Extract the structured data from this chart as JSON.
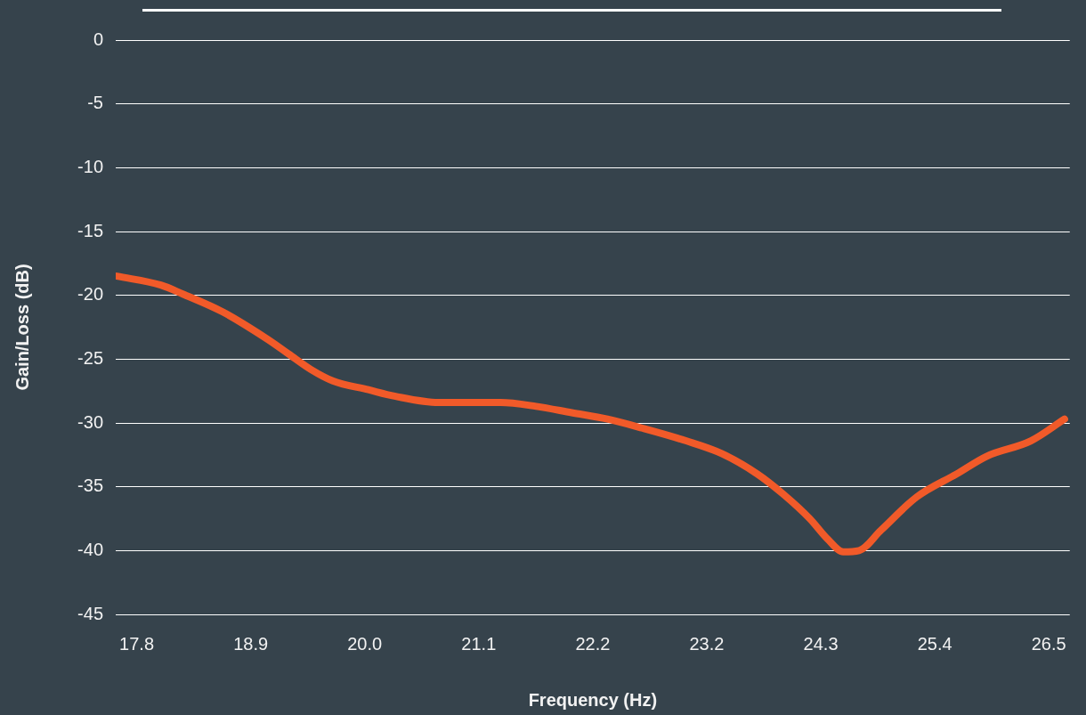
{
  "chart_data": {
    "type": "line",
    "xlabel": "Frequency (Hz)",
    "ylabel": "Gain/Loss (dB)",
    "x": [
      17.61,
      18.03,
      18.24,
      18.62,
      19.04,
      19.25,
      19.46,
      19.67,
      20.01,
      20.26,
      20.68,
      21.27,
      21.61,
      21.95,
      22.29,
      22.62,
      23.04,
      23.38,
      23.72,
      23.97,
      24.22,
      24.39,
      24.54,
      24.69,
      24.9,
      25.24,
      25.62,
      25.91,
      26.33,
      26.65
    ],
    "series": [
      {
        "color": "#f15a29",
        "values": [
          -18.5,
          -19.2,
          -19.9,
          -21.3,
          -23.4,
          -24.6,
          -25.8,
          -26.7,
          -27.4,
          -27.9,
          -28.4,
          -28.4,
          -28.7,
          -29.2,
          -29.7,
          -30.4,
          -31.4,
          -32.4,
          -34.0,
          -35.6,
          -37.5,
          -39.1,
          -40.1,
          -40.0,
          -38.4,
          -35.8,
          -34.0,
          -32.6,
          -31.4,
          -29.7
        ]
      }
    ],
    "xlim": [
      17.6,
      26.7
    ],
    "xticks": [
      {
        "value": 17.8,
        "label": "17.8"
      },
      {
        "value": 18.8875,
        "label": "18.9"
      },
      {
        "value": 19.975,
        "label": "20.0"
      },
      {
        "value": 21.0625,
        "label": "21.1"
      },
      {
        "value": 22.15,
        "label": "22.2"
      },
      {
        "value": 23.2375,
        "label": "23.2"
      },
      {
        "value": 24.325,
        "label": "24.3"
      },
      {
        "value": 25.4125,
        "label": "25.4"
      },
      {
        "value": 26.5,
        "label": "26.5"
      }
    ],
    "ylim": [
      -45,
      0
    ],
    "yticks": [
      0,
      -5,
      -10,
      -15,
      -20,
      -25,
      -30,
      -35,
      -40,
      -45
    ],
    "grid": "y",
    "legend": false,
    "marker": "none",
    "line_style": "solid"
  }
}
